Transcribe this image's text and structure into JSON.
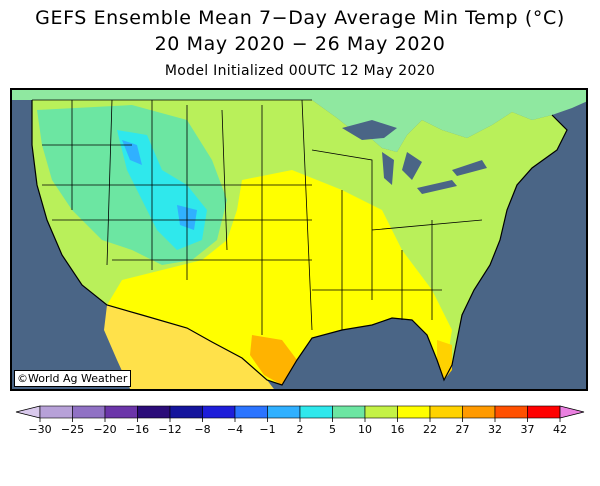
{
  "header": {
    "title": "GEFS Ensemble Mean 7−Day Average Min Temp (°C)",
    "date_range": "20 May 2020 − 26 May 2020",
    "subtitle": "Model Initialized 00UTC 12 May 2020"
  },
  "map": {
    "region": "Contiguous United States",
    "ocean_color": "#4a6586",
    "credit": "©World Ag Weather"
  },
  "colorbar": {
    "ticks": [
      "−30",
      "−25",
      "−20",
      "−16",
      "−12",
      "−8",
      "−4",
      "−1",
      "2",
      "5",
      "10",
      "16",
      "22",
      "27",
      "32",
      "37",
      "42"
    ],
    "colors": [
      "#d9c9ec",
      "#b7a1d8",
      "#9071c4",
      "#6b35a9",
      "#2b0c79",
      "#14149c",
      "#1e1ed9",
      "#2b74ff",
      "#30b0ff",
      "#2fe8ec",
      "#6ce6a2",
      "#c4f246",
      "#ffff00",
      "#ffd200",
      "#ff9a00",
      "#ff5000",
      "#ff0000",
      "#ff00a0",
      "#ea80e0"
    ]
  }
}
